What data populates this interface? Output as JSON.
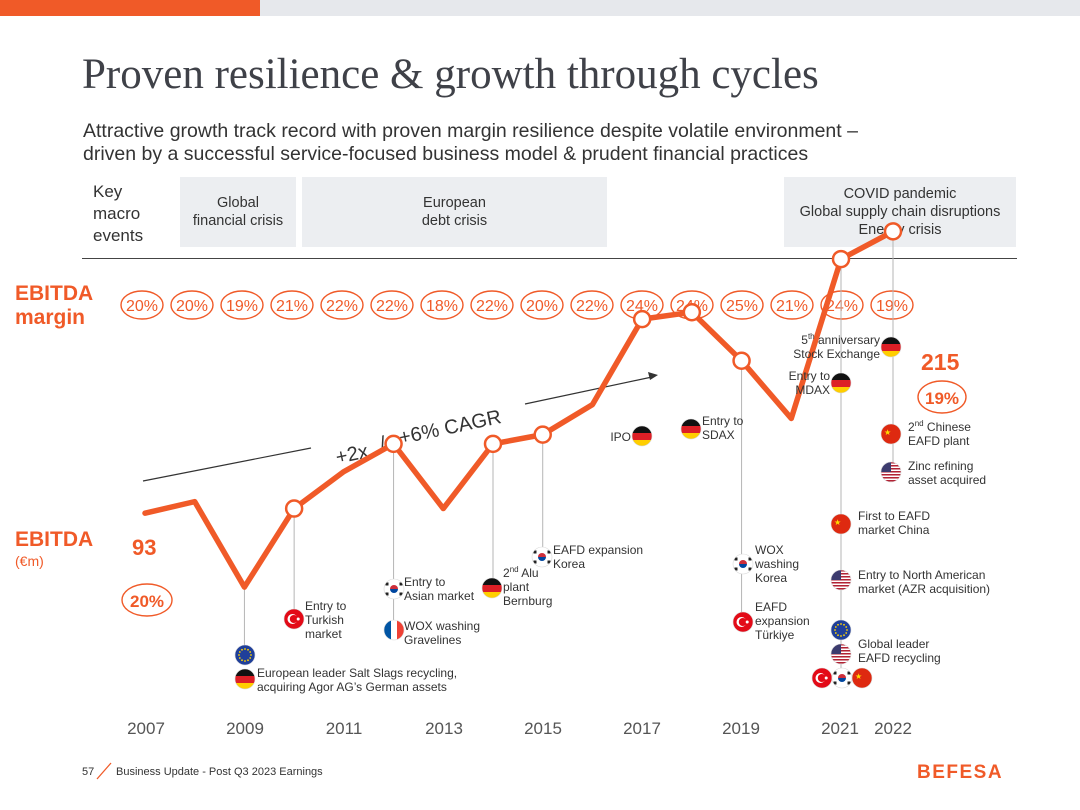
{
  "header": {
    "title": "Proven resilience & growth through cycles",
    "subtitle_lines": [
      "Attractive growth track record with proven margin resilience despite volatile environment –",
      "driven by a successful service-focused business model & prudent financial practices"
    ]
  },
  "macro": {
    "label_lines": [
      "Key",
      "macro",
      "events"
    ],
    "events": [
      {
        "lines": [
          "Global",
          "financial crisis"
        ]
      },
      {
        "lines": [
          "European",
          "debt crisis"
        ]
      },
      {
        "lines": [
          "COVID pandemic",
          "Global supply chain disruptions",
          "Energy crisis"
        ]
      }
    ]
  },
  "labels": {
    "margin_line1": "EBITDA",
    "margin_line2": "margin",
    "ebitda": "EBITDA",
    "ebitda_unit": "(€m)"
  },
  "colors": {
    "accent": "#f05a28",
    "text": "#333333",
    "grey_box": "#eceef1"
  },
  "chart_data": {
    "type": "line",
    "title": "EBITDA (€m) and EBITDA margin, 2007–2022",
    "x": [
      2007,
      2008,
      2009,
      2010,
      2011,
      2012,
      2013,
      2014,
      2015,
      2016,
      2017,
      2018,
      2019,
      2020,
      2021,
      2022
    ],
    "x_tick_labels": [
      "2007",
      "2009",
      "2011",
      "2013",
      "2015",
      "2017",
      "2019",
      "2021",
      "2022"
    ],
    "series": [
      {
        "name": "EBITDA (€m)",
        "values": [
          93,
          98,
          61,
          95,
          111,
          123,
          95,
          123,
          127,
          140,
          177,
          180,
          159,
          134,
          203,
          215
        ]
      }
    ],
    "margins": [
      "20%",
      "20%",
      "19%",
      "21%",
      "22%",
      "22%",
      "18%",
      "22%",
      "20%",
      "22%",
      "24%",
      "24%",
      "25%",
      "21%",
      "24%",
      "19%"
    ],
    "ylim": [
      0,
      230
    ],
    "start_value_label": "93",
    "start_margin_label": "20%",
    "end_value_label": "215",
    "end_margin_label": "19%",
    "cagr_annotation": [
      "+2x",
      "/",
      "+6% CAGR"
    ],
    "annotations": [
      {
        "year": 2009,
        "lines": [
          "European leader Salt Slags recycling,",
          "acquiring Agor AG’s German assets"
        ],
        "flags": [
          "eu",
          "de"
        ]
      },
      {
        "year": 2010,
        "lines": [
          "Entry to",
          "Turkish",
          "market"
        ],
        "flags": [
          "tr"
        ]
      },
      {
        "year": 2012,
        "lines": [
          "Entry to",
          "Asian market"
        ],
        "flags": [
          "kr"
        ]
      },
      {
        "year": 2012,
        "lines": [
          "WOX washing",
          "Gravelines"
        ],
        "flags": [
          "fr"
        ]
      },
      {
        "year": 2014,
        "lines": [
          "2nd Alu",
          "plant",
          "Bernburg"
        ],
        "flags": [
          "de"
        ]
      },
      {
        "year": 2015,
        "lines": [
          "EAFD expansion",
          "Korea"
        ],
        "flags": [
          "kr"
        ]
      },
      {
        "year": 2017,
        "lines": [
          "IPO"
        ],
        "flags": [
          "de"
        ]
      },
      {
        "year": 2018,
        "lines": [
          "Entry to",
          "SDAX"
        ],
        "flags": [
          "de"
        ]
      },
      {
        "year": 2019,
        "lines": [
          "WOX",
          "washing",
          "Korea"
        ],
        "flags": [
          "kr"
        ]
      },
      {
        "year": 2019,
        "lines": [
          "EAFD",
          "expansion",
          "Türkiye"
        ],
        "flags": [
          "tr"
        ]
      },
      {
        "year": 2021,
        "lines": [
          "Entry to",
          "MDAX"
        ],
        "flags": [
          "de"
        ]
      },
      {
        "year": 2021,
        "lines": [
          "First to EAFD",
          "market China"
        ],
        "flags": [
          "cn"
        ]
      },
      {
        "year": 2021,
        "lines": [
          "Entry to North American",
          "market (AZR acquisition)"
        ],
        "flags": [
          "us"
        ]
      },
      {
        "year": 2021,
        "lines": [
          "Global leader",
          "EAFD recycling"
        ],
        "flags": [
          "eu",
          "us",
          "tr",
          "kr",
          "cn"
        ]
      },
      {
        "year": 2022,
        "lines": [
          "5th anniversary",
          "Stock Exchange"
        ],
        "flags": [
          "de"
        ]
      },
      {
        "year": 2022,
        "lines": [
          "2nd Chinese",
          "EAFD plant"
        ],
        "flags": [
          "cn"
        ]
      },
      {
        "year": 2022,
        "lines": [
          "Zinc refining",
          "asset acquired"
        ],
        "flags": [
          "us"
        ]
      }
    ]
  },
  "footer": {
    "page_number": "57",
    "text": "Business Update - Post Q3 2023 Earnings",
    "logo": "BEFESA"
  }
}
